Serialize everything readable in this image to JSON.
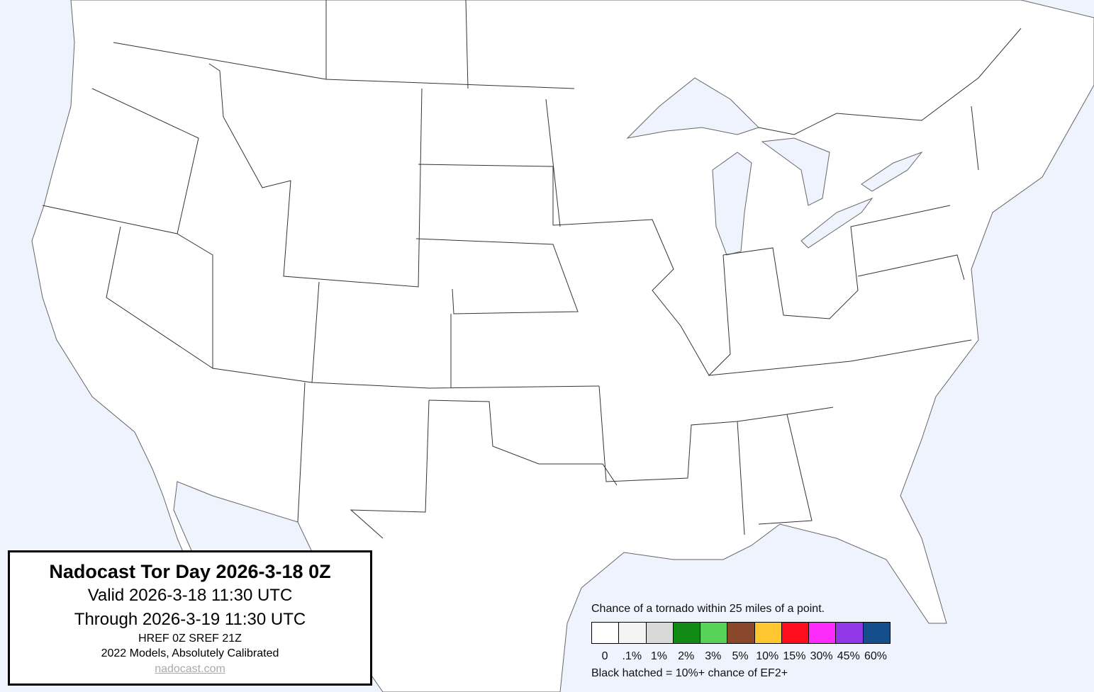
{
  "title_box": {
    "title": "Nadocast Tor Day 2026-3-18 0Z",
    "valid": "Valid 2026-3-18 11:30 UTC",
    "through": "Through 2026-3-19 11:30 UTC",
    "models": "HREF 0Z SREF 21Z",
    "calibration": "2022 Models, Absolutely Calibrated",
    "link": "nadocast.com"
  },
  "legend": {
    "title": "Chance of a tornado within 25 miles of a point.",
    "bins": [
      {
        "label": "0",
        "color": "#ffffff"
      },
      {
        "label": ".1%",
        "color": "#f3f4f3"
      },
      {
        "label": "1%",
        "color": "#d9d9d9"
      },
      {
        "label": "2%",
        "color": "#118a16"
      },
      {
        "label": "3%",
        "color": "#55d257"
      },
      {
        "label": "5%",
        "color": "#89472b"
      },
      {
        "label": "10%",
        "color": "#fec72f"
      },
      {
        "label": "15%",
        "color": "#fe0d1c"
      },
      {
        "label": "30%",
        "color": "#fd2afc"
      },
      {
        "label": "45%",
        "color": "#9237e8"
      },
      {
        "label": "60%",
        "color": "#144f8b"
      }
    ],
    "note": "Black hatched = 10%+ chance of EF2+"
  },
  "map": {
    "water_color": "#eef3fd",
    "land_color": "#ffffff",
    "border_color": "#333333",
    "forecast_areas": []
  }
}
